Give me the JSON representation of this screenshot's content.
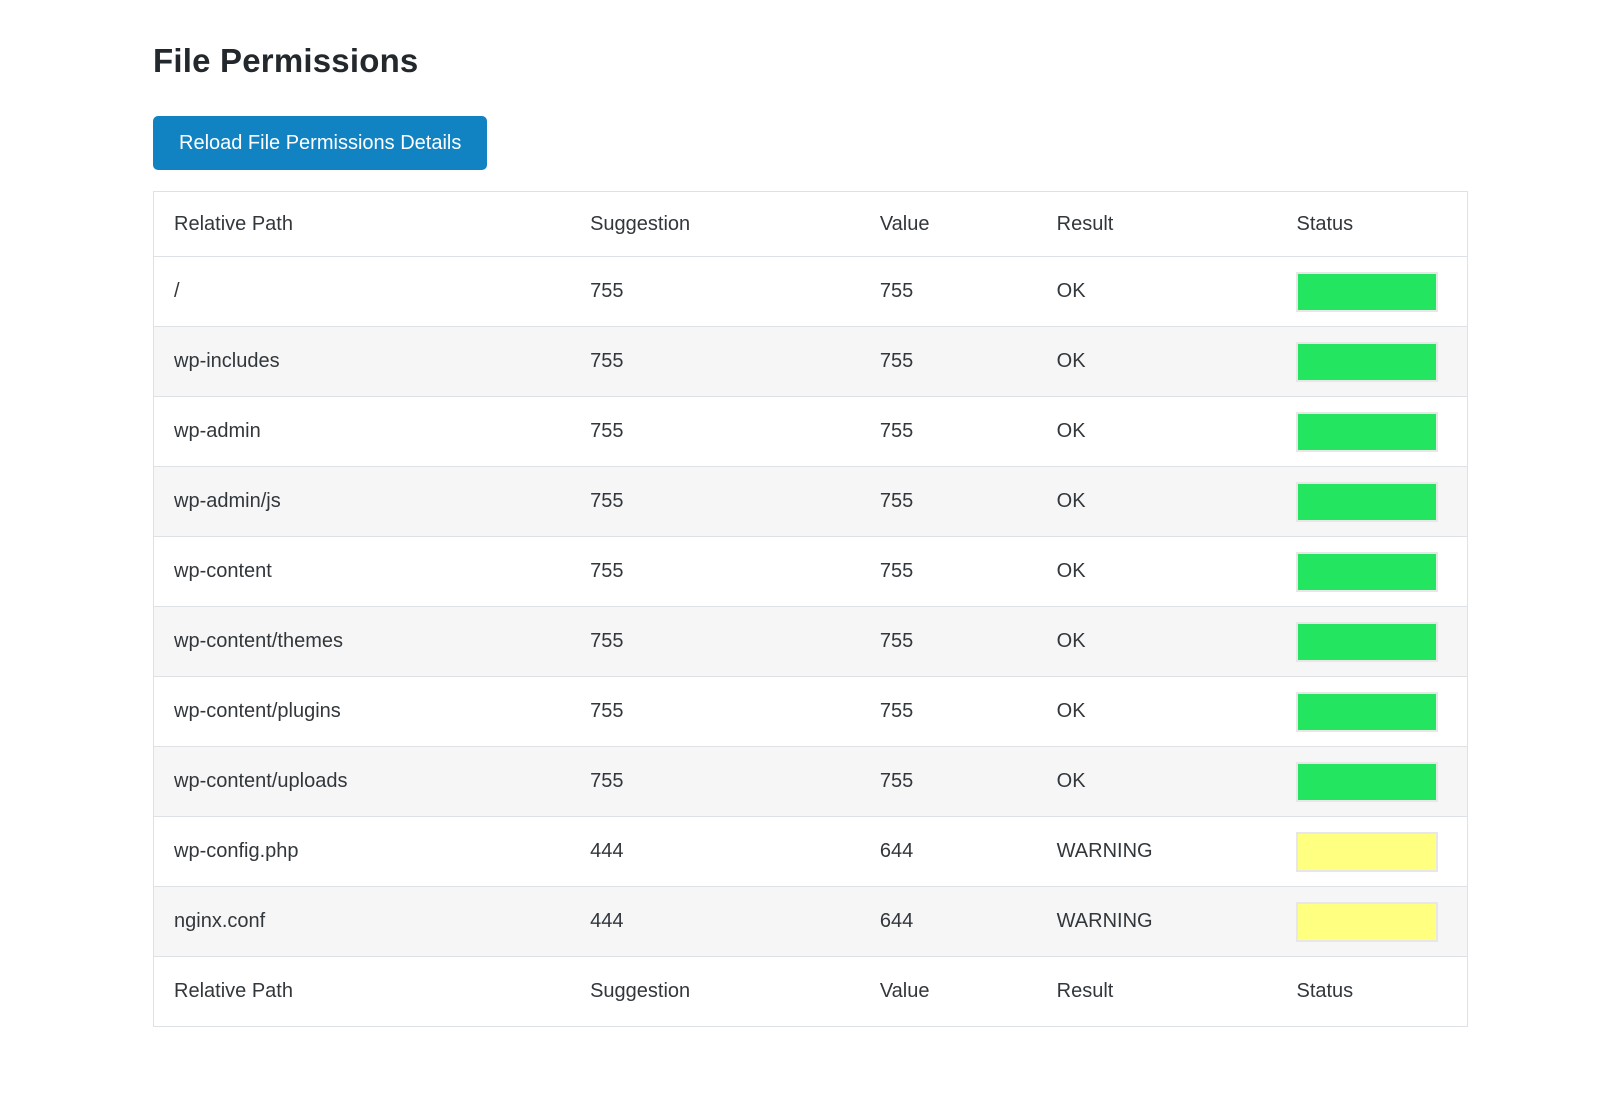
{
  "page": {
    "title": "File Permissions"
  },
  "toolbar": {
    "reload_button_label": "Reload File Permissions Details"
  },
  "table": {
    "columns": [
      "Relative Path",
      "Suggestion",
      "Value",
      "Result",
      "Status"
    ],
    "rows": [
      {
        "path": "/",
        "suggestion": "755",
        "value": "755",
        "result": "OK",
        "status": "ok"
      },
      {
        "path": "wp-includes",
        "suggestion": "755",
        "value": "755",
        "result": "OK",
        "status": "ok"
      },
      {
        "path": "wp-admin",
        "suggestion": "755",
        "value": "755",
        "result": "OK",
        "status": "ok"
      },
      {
        "path": "wp-admin/js",
        "suggestion": "755",
        "value": "755",
        "result": "OK",
        "status": "ok"
      },
      {
        "path": "wp-content",
        "suggestion": "755",
        "value": "755",
        "result": "OK",
        "status": "ok"
      },
      {
        "path": "wp-content/themes",
        "suggestion": "755",
        "value": "755",
        "result": "OK",
        "status": "ok"
      },
      {
        "path": "wp-content/plugins",
        "suggestion": "755",
        "value": "755",
        "result": "OK",
        "status": "ok"
      },
      {
        "path": "wp-content/uploads",
        "suggestion": "755",
        "value": "755",
        "result": "OK",
        "status": "ok"
      },
      {
        "path": "wp-config.php",
        "suggestion": "444",
        "value": "644",
        "result": "WARNING",
        "status": "warning"
      },
      {
        "path": "nginx.conf",
        "suggestion": "444",
        "value": "644",
        "result": "WARNING",
        "status": "warning"
      }
    ]
  },
  "colors": {
    "ok_status": "#23e55f",
    "warning_status": "#ffff80",
    "button": "#1183c2"
  }
}
